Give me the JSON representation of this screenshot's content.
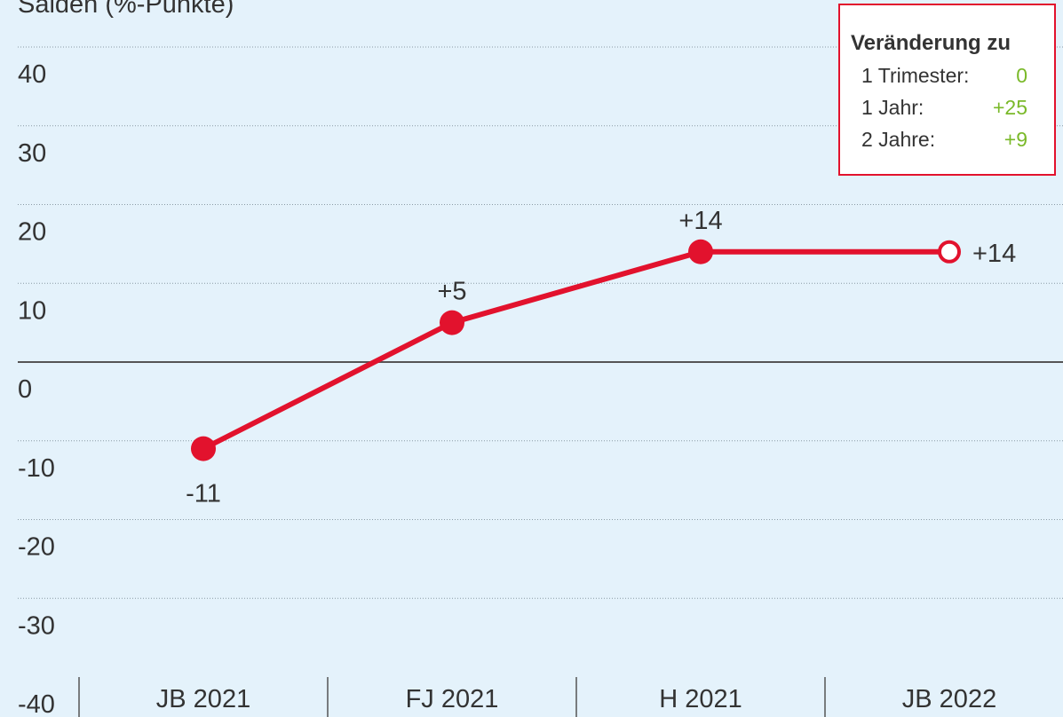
{
  "chart_data": {
    "type": "line",
    "y_axis_label": "Salden (%-Punkte)",
    "categories": [
      "JB 2021",
      "FJ 2021",
      "H 2021",
      "JB 2022"
    ],
    "series": [
      {
        "color": "#e2122d",
        "values": [
          -11,
          5,
          14,
          14
        ],
        "value_labels": [
          "-11",
          "+5",
          "+14",
          "+14"
        ],
        "markers": [
          "filled",
          "filled",
          "filled",
          "hollow"
        ]
      }
    ],
    "ylim": [
      -40,
      40
    ],
    "yticks": [
      -40,
      -30,
      -20,
      -10,
      0,
      10,
      20,
      30,
      40
    ],
    "grid": true,
    "legend_box": {
      "title": "Veränderung zu",
      "border_color": "#e2122d",
      "value_color": "#7ab929",
      "rows": [
        {
          "label": "1 Trimester:",
          "value": "0"
        },
        {
          "label": "1 Jahr:",
          "value": "+25"
        },
        {
          "label": "2 Jahre:",
          "value": "+9"
        }
      ]
    }
  }
}
